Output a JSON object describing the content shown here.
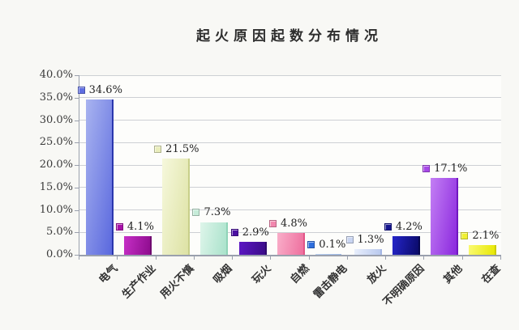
{
  "chart_data": {
    "type": "bar",
    "title": "起火原因起数分布情况",
    "xlabel": "",
    "ylabel": "",
    "categories": [
      "电气",
      "生产作业",
      "用火不慎",
      "吸烟",
      "玩火",
      "自燃",
      "雷击静电",
      "放火",
      "不明确原因",
      "其他",
      "在查"
    ],
    "values": [
      34.6,
      4.1,
      21.5,
      7.3,
      2.9,
      4.8,
      0.1,
      1.3,
      4.2,
      17.1,
      2.1
    ],
    "value_labels": [
      "34.6%",
      "4.1%",
      "21.5%",
      "7.3%",
      "2.9%",
      "4.8%",
      "0.1%",
      "1.3%",
      "4.2%",
      "17.1%",
      "2.1%"
    ],
    "ylim": [
      0,
      40
    ],
    "ytick_step": 5,
    "ytick_labels": [
      "0.0%",
      "5.0%",
      "10.0%",
      "15.0%",
      "20.0%",
      "25.0%",
      "30.0%",
      "35.0%",
      "40.0%"
    ],
    "grid": true,
    "legend_position": "none",
    "axis_color": "#9aa0ad",
    "grid_color": "#cdd0d4",
    "text_color": "#3a3a3a",
    "background": "#f8f8f5",
    "bar_colors": [
      {
        "light": "#a9b4f0",
        "dark": "#5a68de",
        "edge": "#2b37ae",
        "marker": "#5f6ee2"
      },
      {
        "light": "#c62fc6",
        "dark": "#8e0c8e",
        "edge": "#6f086f",
        "marker": "#a812a8"
      },
      {
        "light": "#f6f8dc",
        "dark": "#dde2a4",
        "edge": "#c8cf8a",
        "marker": "#e9edbb"
      },
      {
        "light": "#def5ea",
        "dark": "#a9e2cb",
        "edge": "#8fd4b8",
        "marker": "#c6ecd9"
      },
      {
        "light": "#5d17c4",
        "dark": "#3a0c88",
        "edge": "#2e0a6e",
        "marker": "#4b10a2"
      },
      {
        "light": "#f9aec9",
        "dark": "#ee6f9e",
        "edge": "#e25687",
        "marker": "#f287ae"
      },
      {
        "light": "#bcd2f2",
        "dark": "#9ab8e8",
        "edge": "#86a8e0",
        "marker": "#2e6ede"
      },
      {
        "light": "#e9effc",
        "dark": "#b9c9ee",
        "edge": "#a4b6e4",
        "marker": "#c9d5f1"
      },
      {
        "light": "#2525ca",
        "dark": "#0a0a68",
        "edge": "#060650",
        "marker": "#15158e"
      },
      {
        "light": "#c37ff4",
        "dark": "#8b28de",
        "edge": "#7018c0",
        "marker": "#a849e8"
      },
      {
        "light": "#fafa72",
        "dark": "#e8e805",
        "edge": "#cccc00",
        "marker": "#f0f032"
      }
    ]
  }
}
